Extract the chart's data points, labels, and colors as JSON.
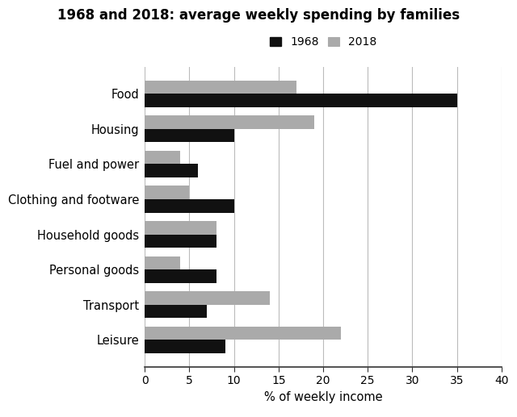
{
  "title": "1968 and 2018: average weekly spending by families",
  "categories": [
    "Food",
    "Housing",
    "Fuel and power",
    "Clothing and footware",
    "Household goods",
    "Personal goods",
    "Transport",
    "Leisure"
  ],
  "values_1968": [
    35,
    10,
    6,
    10,
    8,
    8,
    7,
    9
  ],
  "values_2018": [
    17,
    19,
    4,
    5,
    8,
    4,
    14,
    22
  ],
  "color_1968": "#111111",
  "color_2018": "#aaaaaa",
  "xlabel": "% of weekly income",
  "xlim": [
    0,
    40
  ],
  "xticks": [
    0,
    5,
    10,
    15,
    20,
    25,
    30,
    35,
    40
  ],
  "legend_labels": [
    "1968",
    "2018"
  ],
  "bar_height": 0.38,
  "title_fontsize": 12,
  "label_fontsize": 10.5,
  "tick_fontsize": 10,
  "background_color": "#ffffff"
}
